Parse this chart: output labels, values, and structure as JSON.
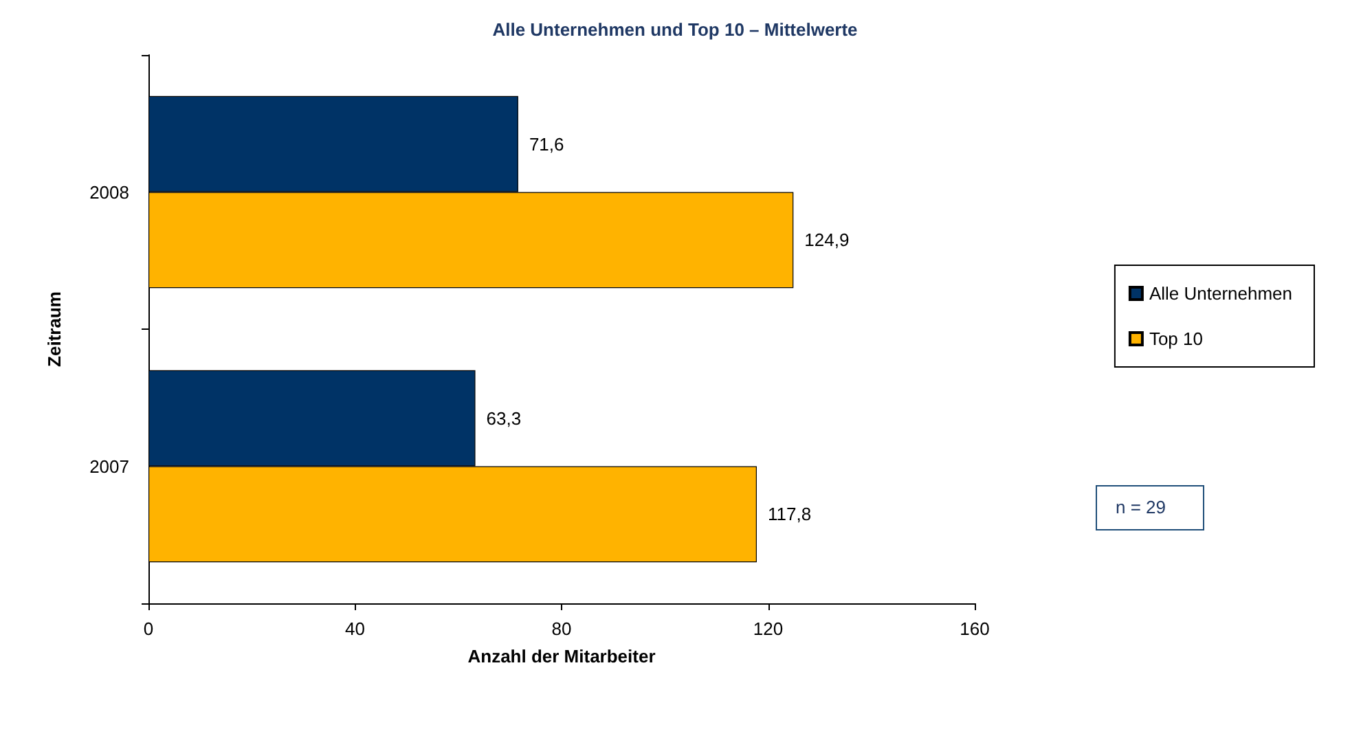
{
  "chart_data": {
    "type": "bar",
    "orientation": "horizontal",
    "title": "Alle Unternehmen und Top 10 – Mittelwerte",
    "xlabel": "Anzahl der Mitarbeiter",
    "ylabel": "Zeitraum",
    "categories": [
      "2008",
      "2007"
    ],
    "series": [
      {
        "name": "Alle Unternehmen",
        "color": "#003366",
        "values": [
          71.6,
          63.3
        ],
        "value_labels": [
          "71,6",
          "63,3"
        ]
      },
      {
        "name": "Top 10",
        "color": "#ffb300",
        "values": [
          124.9,
          117.8
        ],
        "value_labels": [
          "124,9",
          "117,8"
        ]
      }
    ],
    "xlim": [
      0,
      160
    ],
    "xticks": [
      0,
      40,
      80,
      120,
      160
    ],
    "grid": false,
    "legend": "right",
    "annotations": [
      "n = 29"
    ]
  }
}
